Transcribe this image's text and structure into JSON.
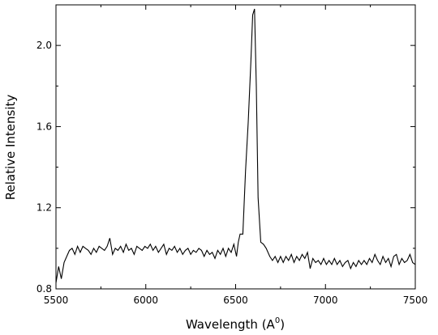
{
  "chart_data": {
    "type": "line",
    "xlabel": "Wavelength (A",
    "xlabel_sup": "0",
    "xlabel_close": ")",
    "ylabel": "Relative Intensity",
    "xlim": [
      5500,
      7500
    ],
    "ylim": [
      0.8,
      2.2
    ],
    "x_ticks": [
      5500,
      6000,
      6500,
      7000,
      7500
    ],
    "x_tick_labels": [
      "5500",
      "6000",
      "6500",
      "7000",
      "7500"
    ],
    "y_ticks": [
      0.8,
      1.2,
      1.6,
      2.0
    ],
    "y_tick_labels": [
      "0.8",
      "1.2",
      "1.6",
      "2.0"
    ],
    "grid": false,
    "legend": "none",
    "line_color": "#000000",
    "series": [
      {
        "x": [
          5500,
          5515,
          5530,
          5545,
          5560,
          5575,
          5590,
          5605,
          5620,
          5635,
          5650,
          5665,
          5680,
          5695,
          5710,
          5725,
          5740,
          5755,
          5770,
          5785,
          5800,
          5815,
          5830,
          5845,
          5860,
          5875,
          5890,
          5905,
          5920,
          5935,
          5950,
          5965,
          5980,
          5995,
          6010,
          6025,
          6040,
          6055,
          6070,
          6085,
          6100,
          6115,
          6130,
          6145,
          6160,
          6175,
          6190,
          6205,
          6220,
          6235,
          6250,
          6265,
          6280,
          6295,
          6310,
          6325,
          6340,
          6355,
          6370,
          6385,
          6400,
          6415,
          6430,
          6445,
          6460,
          6475,
          6490,
          6505,
          6515,
          6525,
          6540,
          6555,
          6570,
          6585,
          6595,
          6605,
          6615,
          6625,
          6640,
          6655,
          6670,
          6690,
          6705,
          6720,
          6735,
          6750,
          6765,
          6780,
          6795,
          6810,
          6825,
          6840,
          6855,
          6870,
          6885,
          6900,
          6915,
          6930,
          6945,
          6960,
          6975,
          6990,
          7005,
          7020,
          7035,
          7050,
          7065,
          7080,
          7095,
          7110,
          7125,
          7140,
          7155,
          7170,
          7185,
          7200,
          7215,
          7230,
          7245,
          7260,
          7275,
          7290,
          7305,
          7320,
          7335,
          7350,
          7365,
          7380,
          7395,
          7410,
          7425,
          7440,
          7455,
          7470,
          7485,
          7500
        ],
        "y": [
          0.83,
          0.91,
          0.85,
          0.93,
          0.96,
          0.99,
          1.0,
          0.97,
          1.01,
          0.98,
          1.01,
          1.0,
          0.99,
          0.97,
          1.0,
          0.98,
          1.01,
          1.0,
          0.99,
          1.01,
          1.05,
          0.97,
          1.0,
          0.99,
          1.01,
          0.98,
          1.02,
          0.99,
          1.0,
          0.97,
          1.01,
          1.0,
          0.99,
          1.01,
          1.0,
          1.02,
          0.99,
          1.01,
          0.98,
          1.0,
          1.02,
          0.97,
          1.0,
          0.99,
          1.01,
          0.98,
          1.0,
          0.97,
          0.99,
          1.0,
          0.97,
          0.99,
          0.98,
          1.0,
          0.99,
          0.96,
          0.99,
          0.97,
          0.98,
          0.95,
          0.99,
          0.97,
          1.0,
          0.96,
          1.0,
          0.98,
          1.02,
          0.96,
          1.03,
          1.07,
          1.07,
          1.38,
          1.62,
          1.92,
          2.15,
          2.18,
          1.8,
          1.25,
          1.03,
          1.02,
          1.0,
          0.96,
          0.94,
          0.96,
          0.93,
          0.96,
          0.93,
          0.96,
          0.94,
          0.97,
          0.93,
          0.96,
          0.94,
          0.97,
          0.95,
          0.98,
          0.9,
          0.95,
          0.93,
          0.94,
          0.92,
          0.95,
          0.92,
          0.94,
          0.92,
          0.95,
          0.92,
          0.94,
          0.91,
          0.93,
          0.94,
          0.9,
          0.93,
          0.91,
          0.94,
          0.92,
          0.94,
          0.92,
          0.95,
          0.93,
          0.97,
          0.94,
          0.92,
          0.96,
          0.93,
          0.95,
          0.91,
          0.96,
          0.97,
          0.92,
          0.95,
          0.93,
          0.94,
          0.97,
          0.93,
          0.92
        ]
      }
    ]
  }
}
